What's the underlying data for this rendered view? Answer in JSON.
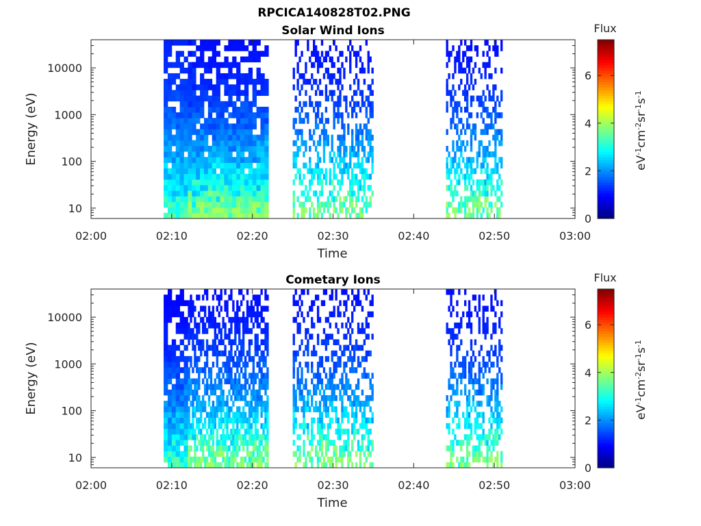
{
  "figure": {
    "title": "RPCICA140828T02.PNG"
  },
  "chart_data": [
    {
      "type": "heatmap",
      "title": "Solar Wind Ions",
      "xlabel": "Time",
      "ylabel": "Energy (eV)",
      "x_ticks": [
        "02:00",
        "02:10",
        "02:20",
        "02:30",
        "02:40",
        "02:50",
        "03:00"
      ],
      "xlim": [
        "02:00",
        "03:00"
      ],
      "y_scale": "log",
      "y_ticks": [
        "10",
        "100",
        "1000",
        "10000"
      ],
      "ylim": [
        6,
        40000
      ],
      "colorbar": {
        "title": "Flux",
        "label": "eV-1cm-2sr-1s-1",
        "ticks": [
          "0",
          "2",
          "4",
          "6"
        ],
        "range": [
          0,
          7.5
        ],
        "colormap": "jet"
      },
      "data_blocks": [
        {
          "x_range": [
            "02:09",
            "02:13"
          ],
          "y_range": [
            6,
            40000
          ],
          "flux_range": [
            0.8,
            3.5
          ],
          "density": "dense"
        },
        {
          "x_range": [
            "02:12",
            "02:22"
          ],
          "y_range": [
            6,
            40000
          ],
          "flux_range": [
            0.5,
            4.0
          ],
          "density": "dense"
        },
        {
          "x_range": [
            "02:25",
            "02:35"
          ],
          "y_range": [
            6,
            40000
          ],
          "flux_range": [
            0.5,
            4.0
          ],
          "density": "sparse"
        },
        {
          "x_range": [
            "02:44",
            "02:51"
          ],
          "y_range": [
            6,
            40000
          ],
          "flux_range": [
            0.5,
            4.0
          ],
          "density": "sparse"
        }
      ]
    },
    {
      "type": "heatmap",
      "title": "Cometary Ions",
      "xlabel": "Time",
      "ylabel": "Energy (eV)",
      "x_ticks": [
        "02:00",
        "02:10",
        "02:20",
        "02:30",
        "02:40",
        "02:50",
        "03:00"
      ],
      "xlim": [
        "02:00",
        "03:00"
      ],
      "y_scale": "log",
      "y_ticks": [
        "10",
        "100",
        "1000",
        "10000"
      ],
      "ylim": [
        6,
        40000
      ],
      "colorbar": {
        "title": "Flux",
        "label": "eV-1cm-2sr-1s-1",
        "ticks": [
          "0",
          "2",
          "4",
          "6"
        ],
        "range": [
          0,
          7.5
        ],
        "colormap": "jet"
      },
      "data_blocks": [
        {
          "x_range": [
            "02:09",
            "02:12"
          ],
          "y_range": [
            6,
            40000
          ],
          "flux_range": [
            0.5,
            3.5
          ],
          "density": "dense"
        },
        {
          "x_range": [
            "02:12",
            "02:22"
          ],
          "y_range": [
            6,
            40000
          ],
          "flux_range": [
            0.5,
            4.0
          ],
          "density": "medium"
        },
        {
          "x_range": [
            "02:25",
            "02:35"
          ],
          "y_range": [
            6,
            40000
          ],
          "flux_range": [
            0.5,
            4.0
          ],
          "density": "sparse"
        },
        {
          "x_range": [
            "02:44",
            "02:51"
          ],
          "y_range": [
            6,
            40000
          ],
          "flux_range": [
            0.5,
            4.0
          ],
          "density": "sparse"
        }
      ]
    }
  ]
}
